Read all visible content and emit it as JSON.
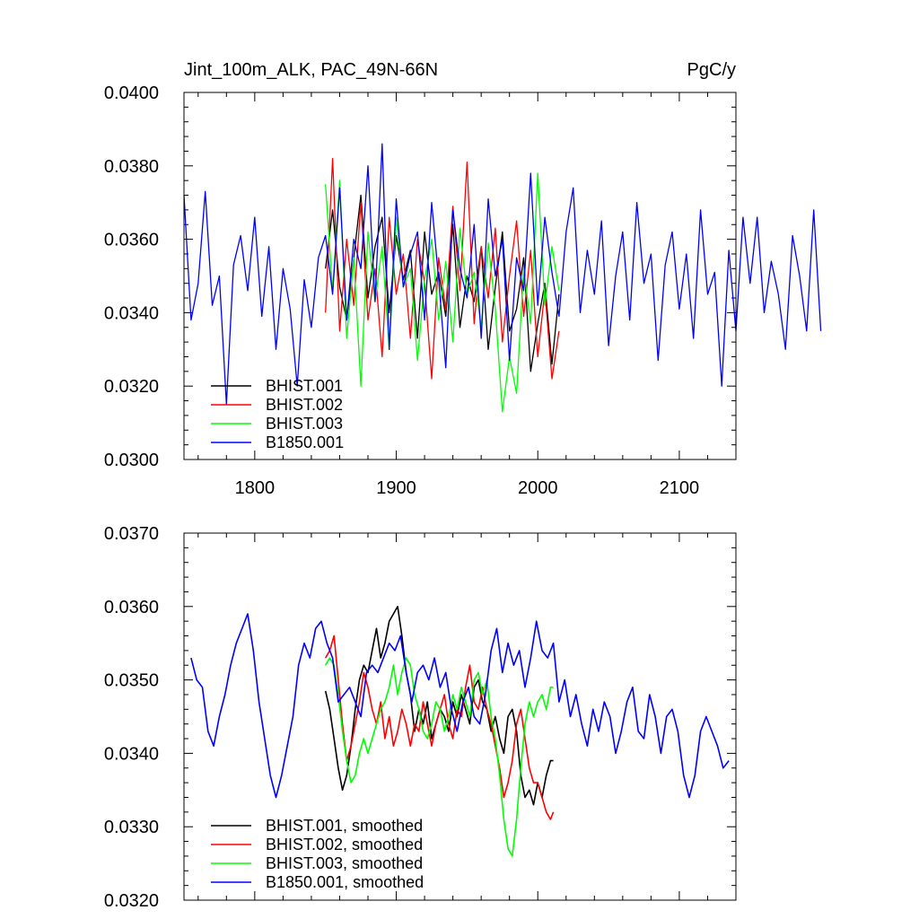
{
  "chart_data": [
    {
      "type": "line",
      "title_left": "Jint_100m_ALK, PAC_49N-66N",
      "title_right": "PgC/y",
      "xlabel": "",
      "ylabel": "",
      "xlim": [
        1750,
        2140
      ],
      "ylim": [
        0.03,
        0.04
      ],
      "xticks": [
        1800,
        1900,
        2000,
        2100
      ],
      "xtick_labels": [
        "1800",
        "1900",
        "2000",
        "2100"
      ],
      "yticks": [
        0.03,
        0.032,
        0.034,
        0.036,
        0.038,
        0.04
      ],
      "ytick_labels": [
        "0.0300",
        "0.0320",
        "0.0340",
        "0.0360",
        "0.0380",
        "0.0400"
      ],
      "legend_position": "bottom-left",
      "series": [
        {
          "name": "BHIST.001",
          "color": "#000000",
          "x_start": 1850,
          "x_step": 5,
          "values": [
            0.0352,
            0.0368,
            0.0347,
            0.0338,
            0.0355,
            0.0372,
            0.0344,
            0.0358,
            0.0366,
            0.034,
            0.0361,
            0.0349,
            0.0357,
            0.0333,
            0.0362,
            0.0345,
            0.0351,
            0.0339,
            0.0364,
            0.0336,
            0.035,
            0.0343,
            0.0358,
            0.033,
            0.0347,
            0.0362,
            0.0335,
            0.0341,
            0.0355,
            0.0324,
            0.0337,
            0.0348,
            0.0326,
            0.0345
          ]
        },
        {
          "name": "BHIST.002",
          "color": "#ff0000",
          "x_start": 1850,
          "x_step": 5,
          "values": [
            0.034,
            0.0382,
            0.0335,
            0.036,
            0.0342,
            0.037,
            0.0338,
            0.0352,
            0.0328,
            0.0366,
            0.0345,
            0.0356,
            0.0333,
            0.036,
            0.0348,
            0.0322,
            0.0355,
            0.0341,
            0.0369,
            0.0346,
            0.0381,
            0.0337,
            0.0358,
            0.0344,
            0.0363,
            0.0332,
            0.035,
            0.0365,
            0.0339,
            0.0357,
            0.0328,
            0.0346,
            0.0322,
            0.0335
          ]
        },
        {
          "name": "BHIST.003",
          "color": "#00ff00",
          "x_start": 1850,
          "x_step": 5,
          "values": [
            0.0375,
            0.0346,
            0.0376,
            0.0333,
            0.0355,
            0.032,
            0.0362,
            0.0343,
            0.0358,
            0.033,
            0.0366,
            0.0347,
            0.0352,
            0.0327,
            0.0349,
            0.036,
            0.0338,
            0.0354,
            0.0332,
            0.0363,
            0.0345,
            0.0351,
            0.0336,
            0.0359,
            0.0341,
            0.0313,
            0.0328,
            0.0318,
            0.0352,
            0.0337,
            0.0378,
            0.0342,
            0.0358,
            0.0346
          ]
        },
        {
          "name": "B1850.001",
          "color": "#0000ff",
          "x_start": 1750,
          "x_step": 5,
          "values": [
            0.0372,
            0.0338,
            0.0348,
            0.0373,
            0.0342,
            0.035,
            0.0315,
            0.0353,
            0.0361,
            0.0346,
            0.0366,
            0.0339,
            0.0358,
            0.033,
            0.0352,
            0.0341,
            0.032,
            0.0349,
            0.0336,
            0.0355,
            0.0361,
            0.0345,
            0.0374,
            0.0338,
            0.036,
            0.0352,
            0.038,
            0.0343,
            0.0386,
            0.033,
            0.0371,
            0.0347,
            0.0356,
            0.0362,
            0.0338,
            0.037,
            0.0349,
            0.0325,
            0.0368,
            0.0352,
            0.0344,
            0.0364,
            0.0333,
            0.0371,
            0.035,
            0.036,
            0.0327,
            0.0355,
            0.0346,
            0.0378,
            0.0342,
            0.0366,
            0.0351,
            0.0339,
            0.0362,
            0.0374,
            0.034,
            0.0357,
            0.0345,
            0.0365,
            0.0331,
            0.035,
            0.0362,
            0.0338,
            0.037,
            0.0348,
            0.0356,
            0.0327,
            0.0353,
            0.0362,
            0.0341,
            0.0356,
            0.0333,
            0.0368,
            0.0345,
            0.0351,
            0.032,
            0.0357,
            0.0335,
            0.0366,
            0.0348,
            0.0366,
            0.034,
            0.0354,
            0.0345,
            0.033,
            0.0361,
            0.035,
            0.0335,
            0.0368,
            0.0335
          ]
        }
      ]
    },
    {
      "type": "line",
      "xlim": [
        1750,
        2140
      ],
      "ylim": [
        0.032,
        0.037
      ],
      "xticks": [
        1800,
        1900,
        2000,
        2100
      ],
      "yticks": [
        0.032,
        0.033,
        0.034,
        0.035,
        0.036,
        0.037
      ],
      "ytick_labels": [
        "0.0320",
        "0.0330",
        "0.0340",
        "0.0350",
        "0.0360",
        "0.0370"
      ],
      "legend_position": "bottom-left",
      "series": [
        {
          "name": "BHIST.001, smoothed",
          "color": "#000000",
          "x": [
            1850,
            1853,
            1856,
            1859,
            1862,
            1865,
            1868,
            1871,
            1874,
            1877,
            1880,
            1883,
            1886,
            1889,
            1892,
            1895,
            1898,
            1901,
            1904,
            1907,
            1910,
            1913,
            1916,
            1919,
            1922,
            1925,
            1928,
            1931,
            1934,
            1937,
            1940,
            1943,
            1946,
            1949,
            1952,
            1955,
            1958,
            1961,
            1964,
            1967,
            1970,
            1973,
            1976,
            1979,
            1982,
            1985,
            1988,
            1991,
            1994,
            1997,
            2000,
            2003,
            2006,
            2009,
            2011
          ],
          "values": [
            0.03485,
            0.0346,
            0.0342,
            0.0338,
            0.0335,
            0.0337,
            0.0341,
            0.0346,
            0.035,
            0.0352,
            0.0351,
            0.0354,
            0.0357,
            0.0353,
            0.0355,
            0.0358,
            0.0359,
            0.036,
            0.0356,
            0.0351,
            0.0348,
            0.0343,
            0.0346,
            0.0344,
            0.0347,
            0.0342,
            0.0344,
            0.0346,
            0.0345,
            0.0343,
            0.0347,
            0.0345,
            0.0348,
            0.0346,
            0.0344,
            0.0349,
            0.035,
            0.0347,
            0.0346,
            0.0343,
            0.0345,
            0.0342,
            0.034,
            0.0345,
            0.0346,
            0.0343,
            0.0337,
            0.0334,
            0.0335,
            0.0333,
            0.0336,
            0.0334,
            0.0337,
            0.0339,
            0.0339
          ]
        },
        {
          "name": "BHIST.002, smoothed",
          "color": "#ff0000",
          "x": [
            1850,
            1853,
            1856,
            1859,
            1862,
            1865,
            1868,
            1871,
            1874,
            1877,
            1880,
            1883,
            1886,
            1889,
            1892,
            1895,
            1898,
            1901,
            1904,
            1907,
            1910,
            1913,
            1916,
            1919,
            1922,
            1925,
            1928,
            1931,
            1934,
            1937,
            1940,
            1943,
            1946,
            1949,
            1952,
            1955,
            1958,
            1961,
            1964,
            1967,
            1970,
            1973,
            1976,
            1979,
            1982,
            1985,
            1988,
            1991,
            1994,
            1997,
            2000,
            2003,
            2006,
            2009,
            2011
          ],
          "values": [
            0.0353,
            0.0354,
            0.0356,
            0.035,
            0.0344,
            0.0339,
            0.0341,
            0.0344,
            0.0347,
            0.0351,
            0.0349,
            0.0346,
            0.0344,
            0.0347,
            0.0342,
            0.0345,
            0.0341,
            0.0343,
            0.0346,
            0.0344,
            0.0341,
            0.0344,
            0.0343,
            0.0347,
            0.0344,
            0.0341,
            0.0344,
            0.0346,
            0.0348,
            0.0344,
            0.0342,
            0.0346,
            0.0345,
            0.0349,
            0.0352,
            0.0347,
            0.0346,
            0.0349,
            0.0346,
            0.0344,
            0.0341,
            0.0338,
            0.0334,
            0.0336,
            0.0339,
            0.0344,
            0.0346,
            0.0342,
            0.0338,
            0.0336,
            0.0336,
            0.0334,
            0.0332,
            0.0331,
            0.0332
          ]
        },
        {
          "name": "BHIST.003, smoothed",
          "color": "#00ff00",
          "x": [
            1850,
            1853,
            1856,
            1859,
            1862,
            1865,
            1868,
            1871,
            1874,
            1877,
            1880,
            1883,
            1886,
            1889,
            1892,
            1895,
            1898,
            1901,
            1904,
            1907,
            1910,
            1913,
            1916,
            1919,
            1922,
            1925,
            1928,
            1931,
            1934,
            1937,
            1940,
            1943,
            1946,
            1949,
            1952,
            1955,
            1958,
            1961,
            1964,
            1967,
            1970,
            1973,
            1976,
            1979,
            1982,
            1985,
            1988,
            1991,
            1994,
            1997,
            2000,
            2003,
            2006,
            2009,
            2011
          ],
          "values": [
            0.0352,
            0.0353,
            0.0352,
            0.0348,
            0.0343,
            0.0339,
            0.0336,
            0.0337,
            0.034,
            0.0342,
            0.034,
            0.0342,
            0.0344,
            0.0346,
            0.0347,
            0.0349,
            0.0352,
            0.0348,
            0.0351,
            0.0353,
            0.0352,
            0.0348,
            0.0346,
            0.0343,
            0.0342,
            0.0344,
            0.0347,
            0.0346,
            0.0343,
            0.0345,
            0.0348,
            0.0346,
            0.0349,
            0.0347,
            0.0345,
            0.035,
            0.0351,
            0.0348,
            0.035,
            0.0345,
            0.0342,
            0.0337,
            0.0331,
            0.0327,
            0.0326,
            0.0331,
            0.0338,
            0.0344,
            0.0347,
            0.0345,
            0.0347,
            0.0348,
            0.0346,
            0.0349,
            0.0349
          ]
        },
        {
          "name": "B1850.001, smoothed",
          "color": "#0000ff",
          "x": [
            1755,
            1759,
            1763,
            1767,
            1771,
            1775,
            1779,
            1783,
            1787,
            1791,
            1795,
            1799,
            1803,
            1807,
            1811,
            1815,
            1819,
            1823,
            1827,
            1831,
            1835,
            1839,
            1843,
            1847,
            1851,
            1855,
            1859,
            1863,
            1867,
            1871,
            1875,
            1879,
            1883,
            1887,
            1891,
            1895,
            1899,
            1903,
            1907,
            1911,
            1915,
            1919,
            1923,
            1927,
            1931,
            1935,
            1939,
            1943,
            1947,
            1951,
            1955,
            1959,
            1963,
            1967,
            1971,
            1975,
            1979,
            1983,
            1987,
            1991,
            1995,
            1999,
            2003,
            2007,
            2011,
            2015,
            2019,
            2023,
            2027,
            2031,
            2035,
            2039,
            2043,
            2047,
            2051,
            2055,
            2059,
            2063,
            2067,
            2071,
            2075,
            2079,
            2083,
            2087,
            2091,
            2095,
            2099,
            2103,
            2107,
            2111,
            2115,
            2119,
            2123,
            2127,
            2131,
            2135
          ],
          "values": [
            0.0353,
            0.035,
            0.0349,
            0.0343,
            0.0341,
            0.0345,
            0.0348,
            0.0352,
            0.0355,
            0.0357,
            0.0359,
            0.0354,
            0.0347,
            0.0342,
            0.0337,
            0.0334,
            0.0337,
            0.0341,
            0.0345,
            0.0352,
            0.0355,
            0.0353,
            0.0357,
            0.0358,
            0.0355,
            0.0353,
            0.0347,
            0.0348,
            0.0349,
            0.0347,
            0.0345,
            0.0351,
            0.0352,
            0.0351,
            0.0353,
            0.0355,
            0.0354,
            0.0356,
            0.0351,
            0.0347,
            0.0351,
            0.0352,
            0.035,
            0.0353,
            0.0349,
            0.0351,
            0.0346,
            0.0343,
            0.0347,
            0.0349,
            0.0345,
            0.0344,
            0.0348,
            0.0354,
            0.0357,
            0.0351,
            0.0355,
            0.0352,
            0.0354,
            0.0349,
            0.0353,
            0.0358,
            0.0354,
            0.0353,
            0.0355,
            0.0347,
            0.035,
            0.0345,
            0.0348,
            0.0344,
            0.0341,
            0.0346,
            0.0343,
            0.0347,
            0.0345,
            0.034,
            0.0343,
            0.0347,
            0.0349,
            0.0343,
            0.0342,
            0.0348,
            0.0345,
            0.034,
            0.0345,
            0.0346,
            0.0343,
            0.0337,
            0.0334,
            0.0337,
            0.0343,
            0.0345,
            0.0343,
            0.0341,
            0.0338,
            0.0339
          ]
        }
      ]
    }
  ]
}
